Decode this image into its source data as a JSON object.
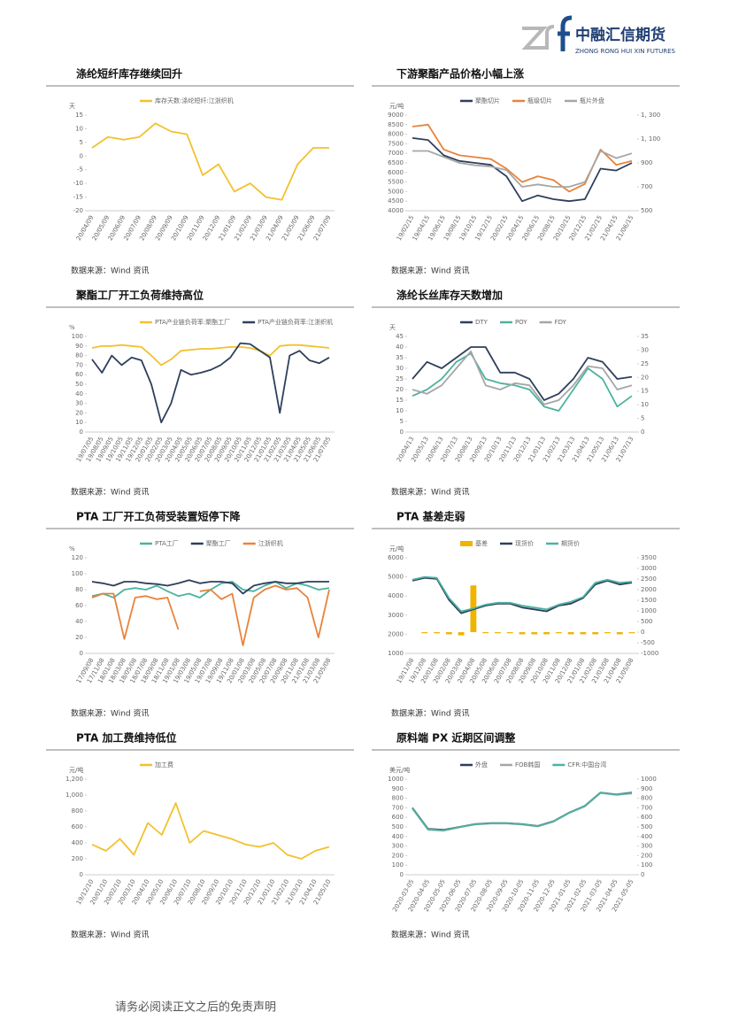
{
  "header": {
    "company": "中融汇信期货",
    "company_en": "ZHONG RONG HUI XIN FUTURES"
  },
  "footer": "请务必阅读正文之后的免责声明",
  "chart_data": [
    {
      "type": "line",
      "title": "涤纶短纤库存继续回升",
      "source": "数据来源：Wind 资讯",
      "y_unit": "天",
      "categories": [
        "20/04/09",
        "20/05/09",
        "20/06/09",
        "20/07/09",
        "20/08/09",
        "20/09/09",
        "20/10/09",
        "20/11/09",
        "20/12/09",
        "21/01/09",
        "21/02/09",
        "21/03/09",
        "21/04/09",
        "21/05/09",
        "21/06/09",
        "21/07/09"
      ],
      "series": [
        {
          "name": "库存天数:涤纶短纤:江浙织机",
          "color": "#f2c12e",
          "values": [
            3,
            7,
            6,
            7,
            12,
            9,
            8,
            -7,
            -3,
            -13,
            -10,
            -15,
            -16,
            -3,
            3,
            3
          ]
        }
      ],
      "ylim": [
        -20,
        15
      ],
      "yticks": [
        -20,
        -15,
        -10,
        -5,
        0,
        5,
        10,
        15
      ]
    },
    {
      "type": "line",
      "title": "下游聚酯产品价格小幅上涨",
      "source": "数据来源：Wind 资讯",
      "y_unit": "元/吨",
      "categories": [
        "19/02/15",
        "19/04/15",
        "19/06/15",
        "19/08/15",
        "19/10/15",
        "19/12/15",
        "20/02/15",
        "20/04/15",
        "20/06/15",
        "20/08/15",
        "20/10/15",
        "20/12/15",
        "21/02/15",
        "21/04/15",
        "21/06/15"
      ],
      "series": [
        {
          "name": "聚酯切片",
          "color": "#2e3f5c",
          "values": [
            7800,
            7700,
            6900,
            6600,
            6500,
            6400,
            5800,
            4500,
            4800,
            4600,
            4500,
            4600,
            6200,
            6100,
            6500
          ]
        },
        {
          "name": "瓶级切片",
          "color": "#e8833a",
          "values": [
            8400,
            8500,
            7200,
            6900,
            6800,
            6700,
            6200,
            5500,
            5800,
            5600,
            5000,
            5400,
            7200,
            6400,
            6600
          ]
        },
        {
          "name": "瓶片外盘",
          "color": "#a6a6a6",
          "axis": "y2",
          "values": [
            1000,
            1000,
            950,
            900,
            880,
            870,
            840,
            700,
            720,
            700,
            700,
            740,
            1000,
            940,
            980
          ]
        }
      ],
      "ylim": [
        4000,
        9000
      ],
      "yticks": [
        4000,
        4500,
        5000,
        5500,
        6000,
        6500,
        7000,
        7500,
        8000,
        8500,
        9000
      ],
      "y2lim": [
        500,
        1300
      ],
      "y2ticks": [
        500,
        700,
        900,
        {
          "value": 1100,
          "label": "1, 100"
        },
        {
          "value": 1300,
          "label": "1, 300"
        }
      ]
    },
    {
      "type": "line",
      "title": "聚酯工厂开工负荷维持高位",
      "source": "数据来源：Wind 资讯",
      "y_unit": "%",
      "categories": [
        "19/07/05",
        "19/08/05",
        "19/09/05",
        "19/10/05",
        "19/11/05",
        "19/12/05",
        "20/01/05",
        "20/02/05",
        "20/03/05",
        "20/04/05",
        "20/05/05",
        "20/06/05",
        "20/07/05",
        "20/08/05",
        "20/09/05",
        "20/10/05",
        "20/11/05",
        "20/12/05",
        "21/01/05",
        "21/02/05",
        "21/03/05",
        "21/04/05",
        "21/05/05",
        "21/06/05",
        "21/07/05"
      ],
      "series": [
        {
          "name": "PTA产业链负荷率:聚酯工厂",
          "color": "#f2c12e",
          "values": [
            88,
            90,
            90,
            91,
            90,
            89,
            80,
            70,
            76,
            85,
            86,
            87,
            87,
            88,
            89,
            89,
            88,
            85,
            80,
            90,
            91,
            91,
            90,
            89,
            88
          ]
        },
        {
          "name": "PTA产业链负荷率:江浙织机",
          "color": "#2e3f5c",
          "values": [
            76,
            62,
            80,
            70,
            78,
            75,
            50,
            10,
            30,
            65,
            60,
            62,
            65,
            70,
            78,
            93,
            92,
            85,
            78,
            20,
            80,
            85,
            75,
            72,
            78
          ]
        }
      ],
      "ylim": [
        0,
        100
      ],
      "yticks": [
        0,
        10,
        20,
        30,
        40,
        50,
        60,
        70,
        80,
        90,
        100
      ]
    },
    {
      "type": "line",
      "title": "涤纶长丝库存天数增加",
      "source": "数据来源：Wind 资讯",
      "y_unit": "天",
      "categories": [
        "20/04/13",
        "20/05/13",
        "20/06/13",
        "20/07/13",
        "20/08/13",
        "20/09/13",
        "20/10/13",
        "20/11/13",
        "20/12/13",
        "21/01/13",
        "21/02/13",
        "21/03/13",
        "21/04/13",
        "21/05/13",
        "21/06/13",
        "21/07/13"
      ],
      "series": [
        {
          "name": "DTY",
          "color": "#2e3f5c",
          "values": [
            25,
            33,
            30,
            35,
            40,
            40,
            28,
            28,
            25,
            15,
            18,
            25,
            35,
            33,
            25,
            26
          ]
        },
        {
          "name": "POY",
          "color": "#4bb3a0",
          "values": [
            17,
            20,
            25,
            33,
            37,
            25,
            23,
            22,
            20,
            12,
            10,
            20,
            30,
            25,
            12,
            17
          ]
        },
        {
          "name": "FDY",
          "color": "#a6a6a6",
          "values": [
            20,
            18,
            22,
            30,
            38,
            22,
            20,
            23,
            22,
            13,
            15,
            22,
            31,
            30,
            20,
            22
          ]
        }
      ],
      "ylim": [
        0,
        45
      ],
      "yticks": [
        0,
        5,
        10,
        15,
        20,
        25,
        30,
        35,
        40,
        45
      ],
      "y2lim": [
        0,
        35
      ],
      "y2ticks": [
        0,
        5,
        10,
        15,
        20,
        25,
        30,
        35
      ]
    },
    {
      "type": "line",
      "title": "PTA 工厂开工负荷受装置短停下降",
      "source": "数据来源：Wind 资讯",
      "y_unit": "%",
      "categories": [
        "17/09/08",
        "17/11/08",
        "18/01/08",
        "18/03/08",
        "18/05/08",
        "18/07/08",
        "18/09/08",
        "18/11/08",
        "19/01/08",
        "19/03/08",
        "19/05/08",
        "19/07/08",
        "19/09/08",
        "19/11/08",
        "20/01/08",
        "20/03/08",
        "20/05/08",
        "20/07/08",
        "20/09/08",
        "20/11/08",
        "21/01/08",
        "21/03/08",
        "21/05/08"
      ],
      "series": [
        {
          "name": "PTA工厂",
          "color": "#4bb3a0",
          "values": [
            72,
            75,
            70,
            80,
            82,
            80,
            85,
            78,
            72,
            75,
            70,
            80,
            88,
            90,
            80,
            78,
            85,
            90,
            82,
            88,
            85,
            80,
            82
          ]
        },
        {
          "name": "聚酯工厂",
          "color": "#2e3f5c",
          "values": [
            90,
            88,
            85,
            90,
            90,
            88,
            87,
            85,
            88,
            92,
            88,
            90,
            90,
            88,
            75,
            85,
            88,
            90,
            88,
            88,
            90,
            90,
            90
          ]
        },
        {
          "name": "江浙织机",
          "color": "#e8833a",
          "values": [
            70,
            75,
            75,
            18,
            70,
            72,
            68,
            70,
            30,
            null,
            78,
            80,
            68,
            75,
            10,
            70,
            80,
            85,
            80,
            82,
            70,
            20,
            80
          ]
        }
      ],
      "ylim": [
        0,
        120
      ],
      "yticks": [
        0,
        20,
        40,
        60,
        80,
        100,
        120
      ]
    },
    {
      "type": "line",
      "title": "PTA 基差走弱",
      "source": "数据来源：Wind 资讯",
      "y_unit": "元/吨",
      "categories": [
        "19/11/08",
        "19/12/08",
        "20/01/08",
        "20/02/08",
        "20/03/08",
        "20/04/08",
        "20/05/08",
        "20/06/08",
        "20/07/08",
        "20/08/08",
        "20/09/08",
        "20/10/08",
        "20/11/08",
        "20/12/08",
        "21/01/08",
        "21/02/08",
        "21/03/08",
        "21/04/08",
        "21/05/08"
      ],
      "series": [
        {
          "name": "基差",
          "color": "#f0b400",
          "type": "bar",
          "axis": "y2",
          "values": [
            0,
            -50,
            -50,
            -100,
            -150,
            2200,
            -50,
            -50,
            -50,
            -100,
            -100,
            -100,
            -50,
            -100,
            -100,
            -100,
            -50,
            -100,
            -50
          ]
        },
        {
          "name": "现货价",
          "color": "#2e3f5c",
          "values": [
            4800,
            4950,
            4900,
            3800,
            3100,
            3300,
            3500,
            3600,
            3600,
            3400,
            3300,
            3200,
            3500,
            3600,
            3900,
            4600,
            4800,
            4600,
            4700
          ]
        },
        {
          "name": "期货价",
          "color": "#4bb3a0",
          "values": [
            4850,
            5000,
            4950,
            3900,
            3200,
            3350,
            3550,
            3650,
            3650,
            3500,
            3400,
            3300,
            3550,
            3700,
            3950,
            4700,
            4850,
            4700,
            4750
          ]
        }
      ],
      "ylim": [
        1000,
        6000
      ],
      "yticks": [
        1000,
        2000,
        3000,
        4000,
        5000,
        6000
      ],
      "y2lim": [
        -1000,
        3500
      ],
      "y2ticks": [
        -1000,
        -500,
        0,
        500,
        1000,
        1500,
        2000,
        2500,
        3000,
        3500
      ]
    },
    {
      "type": "line",
      "title": "PTA 加工费维持低位",
      "source": "数据来源：Wind 资讯",
      "y_unit": "元/吨",
      "categories": [
        "19/12/10",
        "20/01/10",
        "20/02/10",
        "20/03/10",
        "20/04/10",
        "20/05/10",
        "20/06/10",
        "20/07/10",
        "20/08/10",
        "20/09/10",
        "20/10/10",
        "20/11/10",
        "20/12/10",
        "21/01/10",
        "21/02/10",
        "21/03/10",
        "21/04/10",
        "21/05/10"
      ],
      "series": [
        {
          "name": "加工费",
          "color": "#f2c12e",
          "values": [
            380,
            300,
            450,
            250,
            650,
            500,
            900,
            400,
            550,
            500,
            450,
            380,
            350,
            400,
            250,
            200,
            300,
            350
          ]
        }
      ],
      "ylim": [
        0,
        1200
      ],
      "yticks": [
        0,
        200,
        400,
        600,
        800,
        {
          "value": 1000,
          "label": "1,000"
        },
        {
          "value": 1200,
          "label": "1,200"
        }
      ]
    },
    {
      "type": "line",
      "title": "原料端 PX 近期区间调整",
      "source": "数据来源：Wind 资讯",
      "y_unit": "美元/吨",
      "categories": [
        "2020-03-05",
        "2020-04-05",
        "2020-05-05",
        "2020-06-05",
        "2020-07-05",
        "2020-08-05",
        "2020-09-05",
        "2020-10-05",
        "2020-11-05",
        "2020-12-05",
        "2021-01-05",
        "2021-02-05",
        "2021-03-05",
        "2021-04-05",
        "2021-05-05"
      ],
      "series": [
        {
          "name": "外盘",
          "color": "#2e3f5c",
          "values": [
            700,
            480,
            470,
            500,
            530,
            540,
            540,
            530,
            510,
            560,
            650,
            720,
            860,
            840,
            860
          ]
        },
        {
          "name": "FOB韩国",
          "color": "#a6a6a6",
          "values": [
            690,
            470,
            460,
            495,
            525,
            535,
            535,
            525,
            505,
            555,
            645,
            715,
            855,
            835,
            850
          ]
        },
        {
          "name": "CFR:中国台湾",
          "color": "#4bb3a0",
          "values": [
            695,
            475,
            465,
            498,
            528,
            538,
            538,
            528,
            508,
            558,
            648,
            718,
            858,
            838,
            855
          ]
        }
      ],
      "ylim": [
        0,
        1000
      ],
      "yticks": [
        0,
        100,
        200,
        300,
        400,
        500,
        600,
        700,
        800,
        900,
        1000
      ],
      "y2lim": [
        0,
        1000
      ],
      "y2ticks": [
        0,
        100,
        200,
        300,
        400,
        500,
        600,
        700,
        800,
        900,
        1000
      ]
    }
  ]
}
